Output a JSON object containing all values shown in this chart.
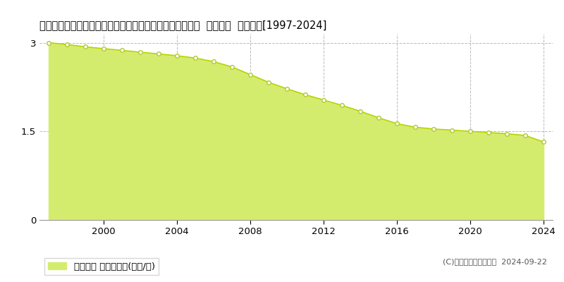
{
  "title": "北海道紋別郡滝上町字滝ノ上市街地２条通２丁目２番５外  基準地価  地価推移[1997-2024]",
  "years": [
    1997,
    1998,
    1999,
    2000,
    2001,
    2002,
    2003,
    2004,
    2005,
    2006,
    2007,
    2008,
    2009,
    2010,
    2011,
    2012,
    2013,
    2014,
    2015,
    2016,
    2017,
    2018,
    2019,
    2020,
    2021,
    2022,
    2023,
    2024
  ],
  "values": [
    3.0,
    2.97,
    2.93,
    2.9,
    2.87,
    2.84,
    2.81,
    2.78,
    2.74,
    2.68,
    2.59,
    2.46,
    2.33,
    2.22,
    2.12,
    2.03,
    1.94,
    1.84,
    1.73,
    1.63,
    1.57,
    1.54,
    1.52,
    1.5,
    1.48,
    1.46,
    1.43,
    1.32
  ],
  "fill_color": "#d4ec6e",
  "line_color": "#b8d400",
  "marker_color": "#ffffff",
  "marker_edge_color": "#b0c830",
  "yticks": [
    0,
    1.5,
    3
  ],
  "xticks": [
    2000,
    2004,
    2008,
    2012,
    2016,
    2020,
    2024
  ],
  "ylim": [
    0,
    3.15
  ],
  "xlim_left": 1996.5,
  "xlim_right": 2024.5,
  "legend_label": "基準地価 平均坪単価(万円/坪)",
  "copyright_text": "(C)土地価格ドットコム  2024-09-22",
  "bg_color": "#ffffff",
  "plot_bg_color": "#ffffff",
  "grid_color": "#bbbbbb",
  "title_fontsize": 10.5,
  "tick_fontsize": 9.5,
  "legend_fontsize": 9.5,
  "copyright_fontsize": 8
}
